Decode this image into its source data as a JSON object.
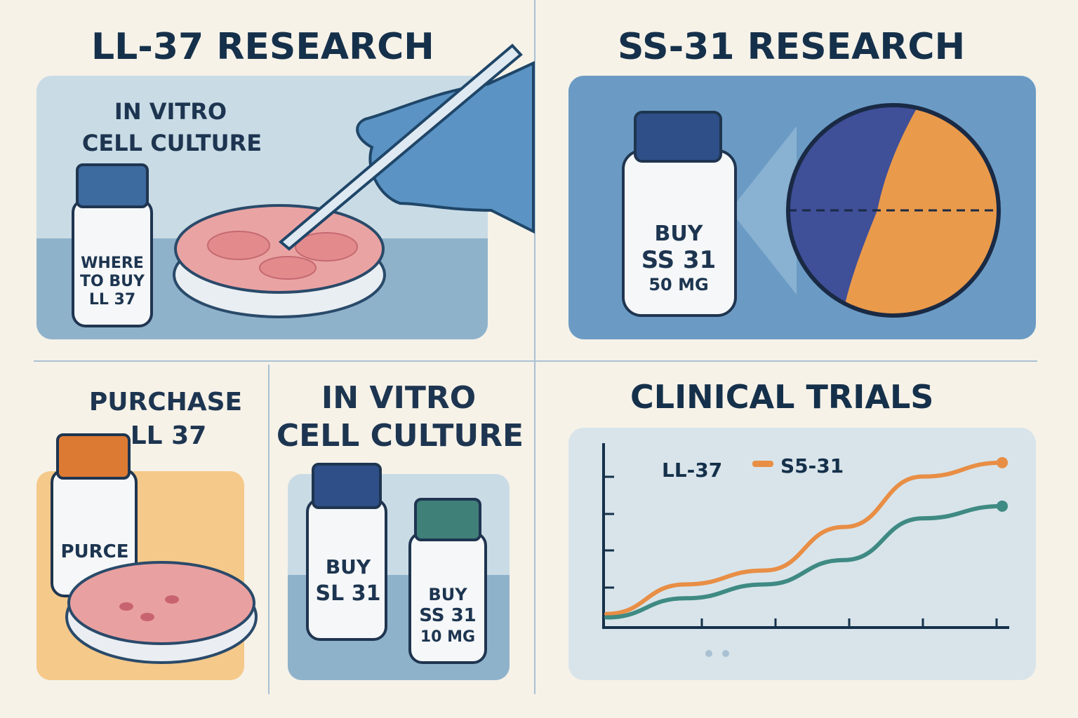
{
  "panels": {
    "ll37_research": {
      "title": "LL-37 RESEARCH",
      "caption_line1": "IN VITRO",
      "caption_line2": "CELL CULTURE",
      "vial_label": [
        "WHERE",
        "TO BUY",
        "LL 37"
      ]
    },
    "ss31_research": {
      "title": "SS-31 RESEARCH",
      "vial_label": [
        "BUY",
        "SS 31",
        "50 MG"
      ]
    },
    "purchase": {
      "title_line1": "PURCHASE",
      "title_line2": "LL 37",
      "vial_label": "PURCE"
    },
    "in_vitro": {
      "title_line1": "IN VITRO",
      "title_line2": "CELL CULTURE",
      "vial1_label": [
        "BUY",
        "SL 31"
      ],
      "vial2_label": [
        "BUY",
        "SS 31",
        "10 MG"
      ]
    },
    "clinical_trials": {
      "title": "CLINICAL TRIALS"
    }
  },
  "colors": {
    "background": "#f6f2e8",
    "navy": "#15304a",
    "orange": "#e88e45",
    "teal": "#3f8a83",
    "blue": "#6b9bc4"
  },
  "chart_data": {
    "type": "line",
    "title": "CLINICAL TRIALS",
    "legend": [
      "LL-37",
      "S5-31"
    ],
    "legend_placement": "top-left",
    "x": [
      0,
      1,
      2,
      3,
      4,
      5
    ],
    "series": [
      {
        "name": "S5-31",
        "color": "#e88e45",
        "values": [
          5,
          22,
          30,
          55,
          84,
          92
        ]
      },
      {
        "name": "LL-37",
        "color": "#3f8a83",
        "values": [
          3,
          14,
          22,
          36,
          60,
          67
        ]
      }
    ],
    "ylim": [
      0,
      100
    ],
    "grid": false
  }
}
